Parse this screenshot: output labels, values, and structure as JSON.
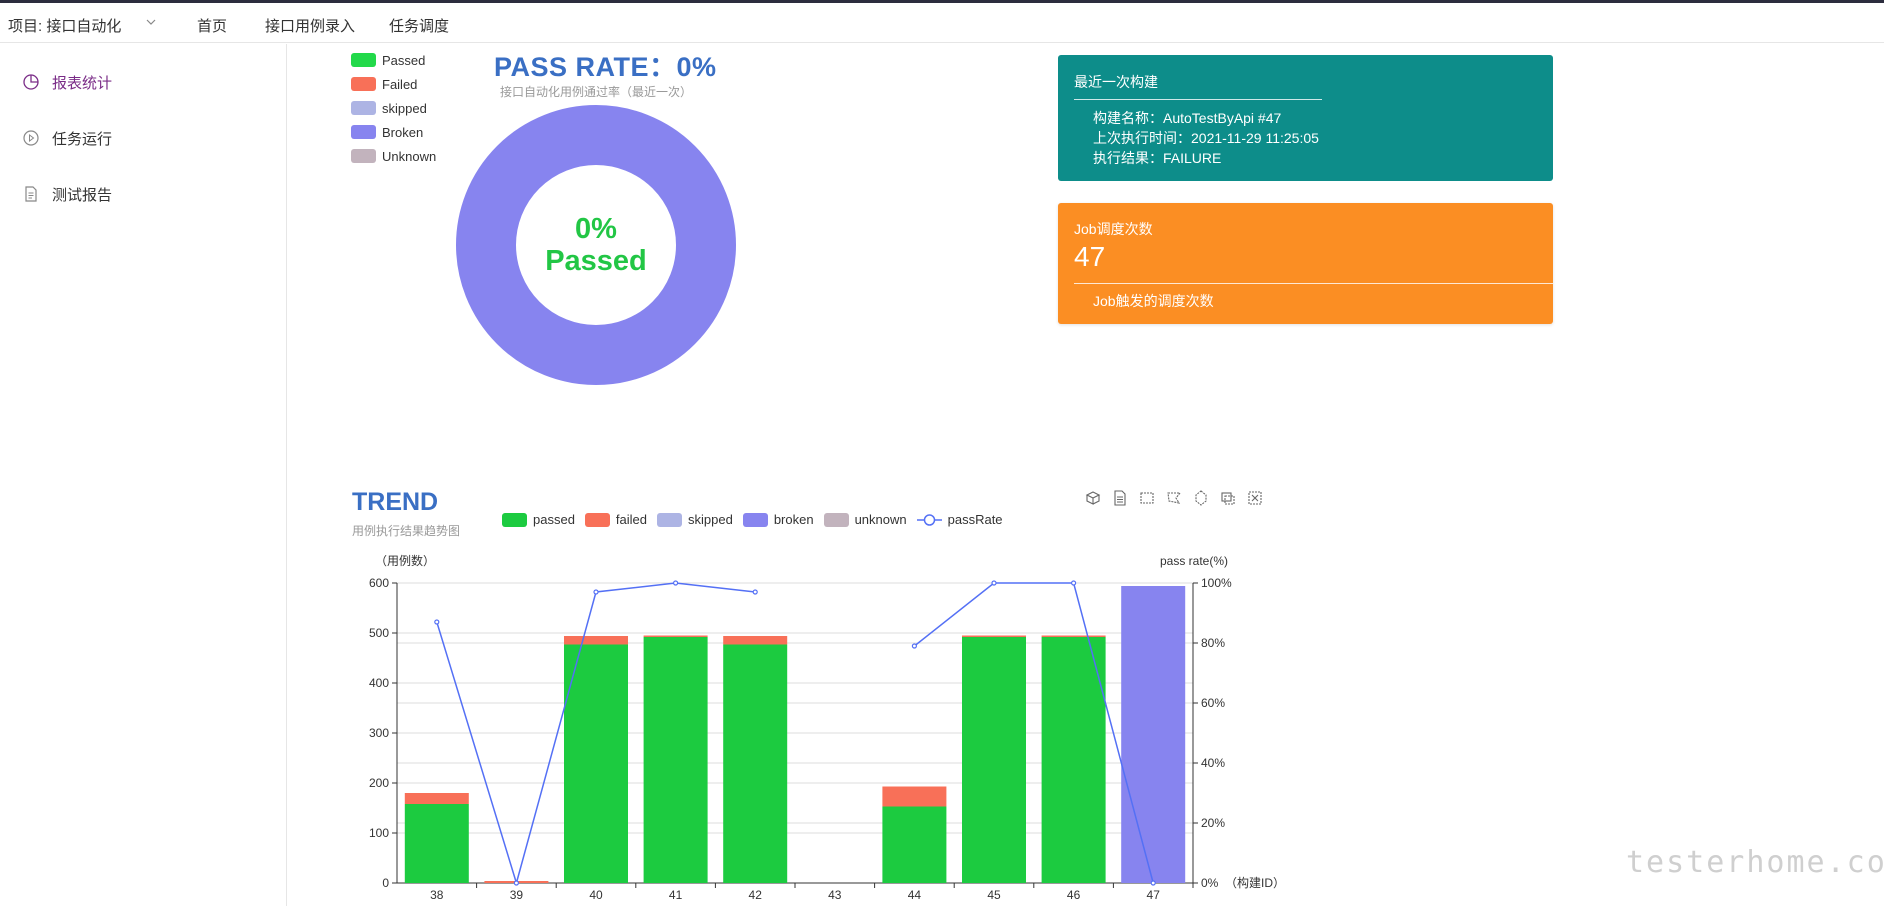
{
  "topbar": {
    "project": "项目: 接口自动化",
    "nav": [
      "首页",
      "接口用例录入",
      "任务调度"
    ]
  },
  "sidebar": {
    "items": [
      {
        "label": "报表统计",
        "icon": "pie-chart-icon",
        "active": true
      },
      {
        "label": "任务运行",
        "icon": "play-circle-icon",
        "active": false
      },
      {
        "label": "测试报告",
        "icon": "document-icon",
        "active": false
      }
    ]
  },
  "pass_panel": {
    "title": "PASS RATE：0%",
    "subtitle": "接口自动化用例通过率（最近一次）",
    "center_percent": "0%",
    "center_label": "Passed",
    "legend": [
      {
        "label": "Passed",
        "color": "#22d94a"
      },
      {
        "label": "Failed",
        "color": "#f87058"
      },
      {
        "label": "skipped",
        "color": "#adb4e4"
      },
      {
        "label": "Broken",
        "color": "#8784ef"
      },
      {
        "label": "Unknown",
        "color": "#c2b3bd"
      }
    ],
    "donut_color": "#8784ef"
  },
  "build_card": {
    "title": "最近一次构建",
    "lines": [
      "构建名称：AutoTestByApi #47",
      "上次执行时间：2021-11-29 11:25:05",
      "执行结果：FAILURE"
    ],
    "color": "#0d8d8a"
  },
  "job_card": {
    "title": "Job调度次数",
    "count": "47",
    "caption": "Job触发的调度次数",
    "color": "#fb8e23"
  },
  "trend": {
    "title": "TREND",
    "subtitle": "用例执行结果趋势图",
    "legend": [
      {
        "label": "passed",
        "color": "#1ccb40"
      },
      {
        "label": "failed",
        "color": "#f87058"
      },
      {
        "label": "skipped",
        "color": "#adb4e4"
      },
      {
        "label": "broken",
        "color": "#8784ef"
      },
      {
        "label": "unknown",
        "color": "#c2b3bd"
      },
      {
        "label": "passRate",
        "color": "#5470f5"
      }
    ],
    "toolbox": [
      "data-view-icon",
      "document-icon",
      "zoom-select-icon",
      "zoom-lasso-icon",
      "restore-icon",
      "save-image-icon",
      "reset-icon"
    ]
  },
  "chart_data": {
    "type": "bar",
    "stacked": true,
    "categories": [
      "38",
      "39",
      "40",
      "41",
      "42",
      "43",
      "44",
      "45",
      "46",
      "47"
    ],
    "ylabel": "（用例数）",
    "y2label": "pass rate(%)",
    "xlabel": "（构建ID）",
    "ylim": [
      0,
      600
    ],
    "yticks": [
      "0",
      "100",
      "200",
      "300",
      "400",
      "500",
      "600"
    ],
    "y2lim": [
      0,
      100
    ],
    "y2ticks": [
      "0%",
      "20%",
      "40%",
      "60%",
      "80%",
      "100%"
    ],
    "series": [
      {
        "name": "passed",
        "values": [
          158,
          0,
          477,
          492,
          477,
          0,
          153,
          492,
          492,
          0
        ]
      },
      {
        "name": "failed",
        "values": [
          22,
          4,
          17,
          3,
          17,
          0,
          40,
          3,
          3,
          0
        ]
      },
      {
        "name": "skipped",
        "values": [
          0,
          0,
          0,
          0,
          0,
          0,
          0,
          0,
          0,
          0
        ]
      },
      {
        "name": "broken",
        "values": [
          0,
          0,
          0,
          0,
          0,
          0,
          0,
          0,
          0,
          594
        ]
      },
      {
        "name": "unknown",
        "values": [
          0,
          0,
          0,
          0,
          0,
          0,
          0,
          0,
          0,
          0
        ]
      },
      {
        "name": "passRate",
        "axis": "right",
        "values": [
          87,
          0,
          97,
          100,
          97,
          null,
          79,
          100,
          100,
          0
        ]
      }
    ],
    "grid": true,
    "legend_position": "top"
  },
  "watermark": "testerhome.com"
}
